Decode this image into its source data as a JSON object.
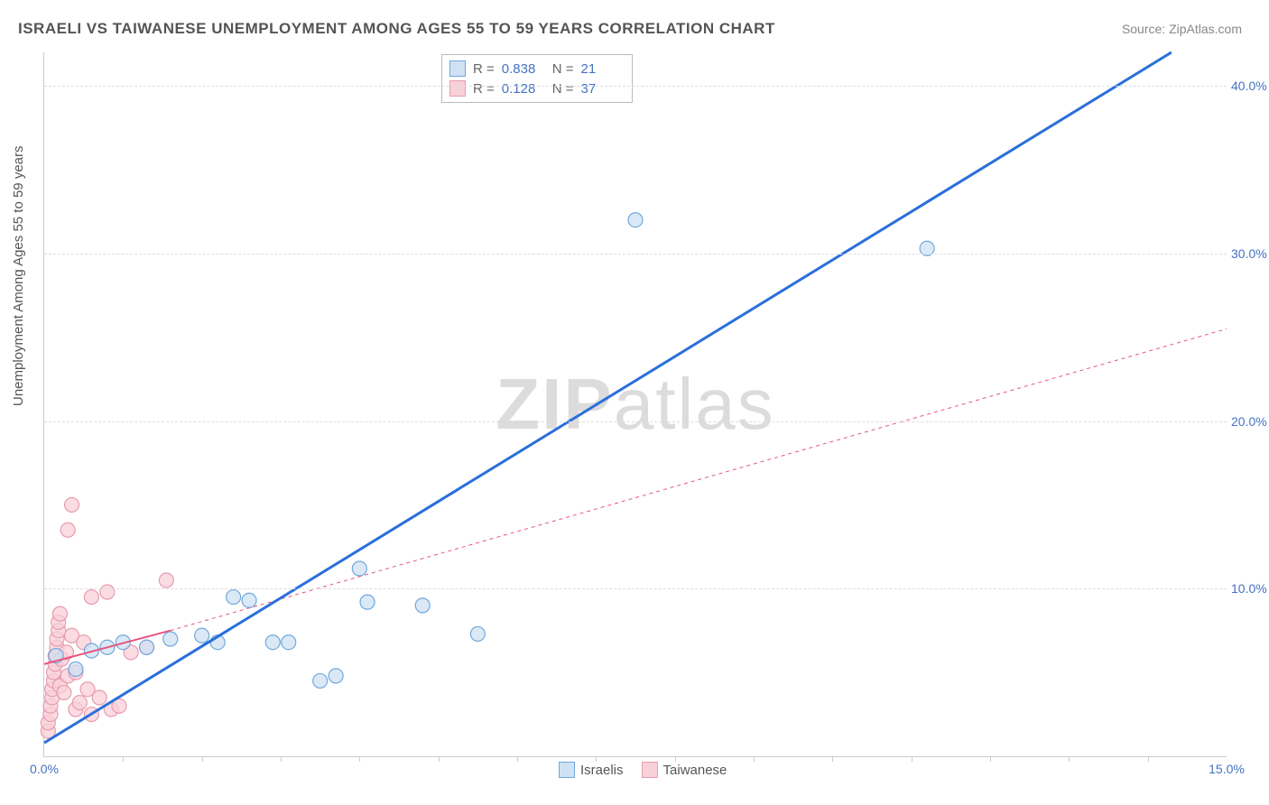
{
  "title": "ISRAELI VS TAIWANESE UNEMPLOYMENT AMONG AGES 55 TO 59 YEARS CORRELATION CHART",
  "source_label": "Source:",
  "source_name": "ZipAtlas.com",
  "ylabel": "Unemployment Among Ages 55 to 59 years",
  "watermark_bold": "ZIP",
  "watermark_rest": "atlas",
  "chart": {
    "type": "scatter",
    "xlim": [
      0,
      15
    ],
    "ylim": [
      0,
      42
    ],
    "x_ticks": [
      0.0,
      15.0
    ],
    "x_tick_labels": [
      "0.0%",
      "15.0%"
    ],
    "x_minor_ticks": [
      1,
      2,
      3,
      4,
      5,
      6,
      7,
      8,
      9,
      10,
      11,
      12,
      13,
      14
    ],
    "y_ticks": [
      10.0,
      20.0,
      30.0,
      40.0
    ],
    "y_tick_labels": [
      "10.0%",
      "20.0%",
      "30.0%",
      "40.0%"
    ],
    "grid_color": "#dddddd",
    "axis_color": "#cccccc",
    "background_color": "#ffffff",
    "tick_label_color": "#4472c4",
    "series": [
      {
        "name": "Israelis",
        "marker_fill": "#cfe2f3",
        "marker_stroke": "#6fa8dc",
        "marker_radius": 8,
        "line_color": "#2a6fdb",
        "line_width": 3,
        "line_dash": "none",
        "r_value": "0.838",
        "n_value": "21",
        "fit_line": {
          "x1": 0.0,
          "y1": 0.8,
          "x2": 14.3,
          "y2": 42.0
        },
        "points": [
          {
            "x": 0.15,
            "y": 6.0
          },
          {
            "x": 0.4,
            "y": 5.2
          },
          {
            "x": 0.6,
            "y": 6.3
          },
          {
            "x": 0.8,
            "y": 6.5
          },
          {
            "x": 1.0,
            "y": 6.8
          },
          {
            "x": 1.3,
            "y": 6.5
          },
          {
            "x": 1.6,
            "y": 7.0
          },
          {
            "x": 2.0,
            "y": 7.2
          },
          {
            "x": 2.2,
            "y": 6.8
          },
          {
            "x": 2.4,
            "y": 9.5
          },
          {
            "x": 2.6,
            "y": 9.3
          },
          {
            "x": 2.9,
            "y": 6.8
          },
          {
            "x": 3.1,
            "y": 6.8
          },
          {
            "x": 3.5,
            "y": 4.5
          },
          {
            "x": 3.7,
            "y": 4.8
          },
          {
            "x": 4.0,
            "y": 11.2
          },
          {
            "x": 4.1,
            "y": 9.2
          },
          {
            "x": 4.8,
            "y": 9.0
          },
          {
            "x": 5.5,
            "y": 7.3
          },
          {
            "x": 7.5,
            "y": 32.0
          },
          {
            "x": 11.2,
            "y": 30.3
          }
        ]
      },
      {
        "name": "Taiwanese",
        "marker_fill": "#f8d0d8",
        "marker_stroke": "#e89bb0",
        "marker_radius": 8,
        "line_color": "#e75480",
        "line_width": 2,
        "line_dash": "none",
        "extrapolation_dash": "4,4",
        "r_value": "0.128",
        "n_value": "37",
        "fit_line": {
          "x1": 0.0,
          "y1": 5.5,
          "x2": 1.6,
          "y2": 7.5
        },
        "extrapolation": {
          "x1": 1.6,
          "y1": 7.5,
          "x2": 15.0,
          "y2": 25.5
        },
        "points": [
          {
            "x": 0.05,
            "y": 1.5
          },
          {
            "x": 0.05,
            "y": 2.0
          },
          {
            "x": 0.08,
            "y": 2.5
          },
          {
            "x": 0.08,
            "y": 3.0
          },
          {
            "x": 0.1,
            "y": 3.5
          },
          {
            "x": 0.1,
            "y": 4.0
          },
          {
            "x": 0.12,
            "y": 4.5
          },
          {
            "x": 0.12,
            "y": 5.0
          },
          {
            "x": 0.14,
            "y": 5.5
          },
          {
            "x": 0.14,
            "y": 6.0
          },
          {
            "x": 0.16,
            "y": 6.5
          },
          {
            "x": 0.16,
            "y": 7.0
          },
          {
            "x": 0.18,
            "y": 7.5
          },
          {
            "x": 0.18,
            "y": 8.0
          },
          {
            "x": 0.2,
            "y": 8.5
          },
          {
            "x": 0.2,
            "y": 4.2
          },
          {
            "x": 0.22,
            "y": 5.8
          },
          {
            "x": 0.25,
            "y": 3.8
          },
          {
            "x": 0.28,
            "y": 6.2
          },
          {
            "x": 0.3,
            "y": 4.8
          },
          {
            "x": 0.3,
            "y": 13.5
          },
          {
            "x": 0.35,
            "y": 15.0
          },
          {
            "x": 0.35,
            "y": 7.2
          },
          {
            "x": 0.4,
            "y": 5.0
          },
          {
            "x": 0.4,
            "y": 2.8
          },
          {
            "x": 0.45,
            "y": 3.2
          },
          {
            "x": 0.5,
            "y": 6.8
          },
          {
            "x": 0.55,
            "y": 4.0
          },
          {
            "x": 0.6,
            "y": 9.5
          },
          {
            "x": 0.6,
            "y": 2.5
          },
          {
            "x": 0.7,
            "y": 3.5
          },
          {
            "x": 0.8,
            "y": 9.8
          },
          {
            "x": 0.85,
            "y": 2.8
          },
          {
            "x": 0.95,
            "y": 3.0
          },
          {
            "x": 1.1,
            "y": 6.2
          },
          {
            "x": 1.3,
            "y": 6.5
          },
          {
            "x": 1.55,
            "y": 10.5
          }
        ]
      }
    ],
    "legend_bottom": [
      {
        "swatch_fill": "#cfe2f3",
        "swatch_stroke": "#6fa8dc",
        "label": "Israelis"
      },
      {
        "swatch_fill": "#f8d0d8",
        "swatch_stroke": "#e89bb0",
        "label": "Taiwanese"
      }
    ]
  }
}
